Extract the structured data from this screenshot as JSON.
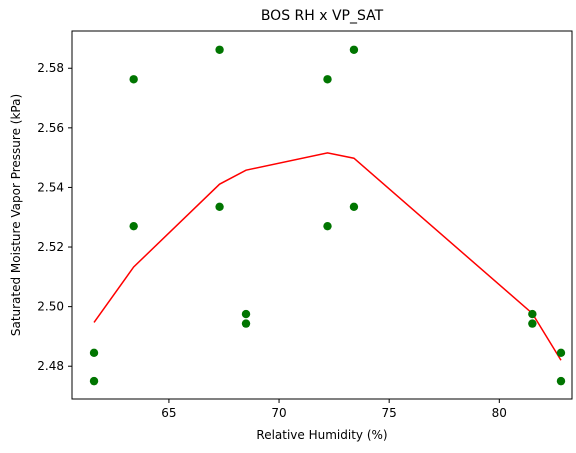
{
  "chart_data": {
    "type": "scatter",
    "title": "BOS RH x VP_SAT",
    "xlabel": "Relative Humidity (%)",
    "ylabel": "Saturated Moisture Vapor Pressure (kPa)",
    "xlim": [
      60.6,
      83.3
    ],
    "ylim": [
      2.469,
      2.5925
    ],
    "xticks": [
      65,
      70,
      75,
      80
    ],
    "yticks": [
      2.48,
      2.5,
      2.52,
      2.54,
      2.56,
      2.58
    ],
    "xtick_labels": [
      "65",
      "70",
      "75",
      "80"
    ],
    "ytick_labels": [
      "2.48",
      "2.50",
      "2.52",
      "2.54",
      "2.56",
      "2.58"
    ],
    "grid": false,
    "series": [
      {
        "kind": "scatter",
        "color": "#007500",
        "points": [
          {
            "x": 61.6,
            "y": 2.475
          },
          {
            "x": 61.6,
            "y": 2.4845
          },
          {
            "x": 63.4,
            "y": 2.527
          },
          {
            "x": 63.4,
            "y": 2.5763
          },
          {
            "x": 67.3,
            "y": 2.5335
          },
          {
            "x": 67.3,
            "y": 2.5862
          },
          {
            "x": 68.5,
            "y": 2.4943
          },
          {
            "x": 68.5,
            "y": 2.4975
          },
          {
            "x": 72.2,
            "y": 2.527
          },
          {
            "x": 72.2,
            "y": 2.5763
          },
          {
            "x": 73.4,
            "y": 2.5335
          },
          {
            "x": 73.4,
            "y": 2.5862
          },
          {
            "x": 81.5,
            "y": 2.4943
          },
          {
            "x": 81.5,
            "y": 2.4975
          },
          {
            "x": 82.8,
            "y": 2.475
          },
          {
            "x": 82.8,
            "y": 2.4845
          }
        ]
      },
      {
        "kind": "line",
        "color": "#ff0000",
        "points": [
          {
            "x": 61.6,
            "y": 2.4947
          },
          {
            "x": 63.4,
            "y": 2.5133
          },
          {
            "x": 67.3,
            "y": 2.5411
          },
          {
            "x": 68.5,
            "y": 2.5458
          },
          {
            "x": 72.2,
            "y": 2.5516
          },
          {
            "x": 73.4,
            "y": 2.5498
          },
          {
            "x": 81.5,
            "y": 2.4977
          },
          {
            "x": 82.8,
            "y": 2.482
          }
        ]
      }
    ]
  }
}
